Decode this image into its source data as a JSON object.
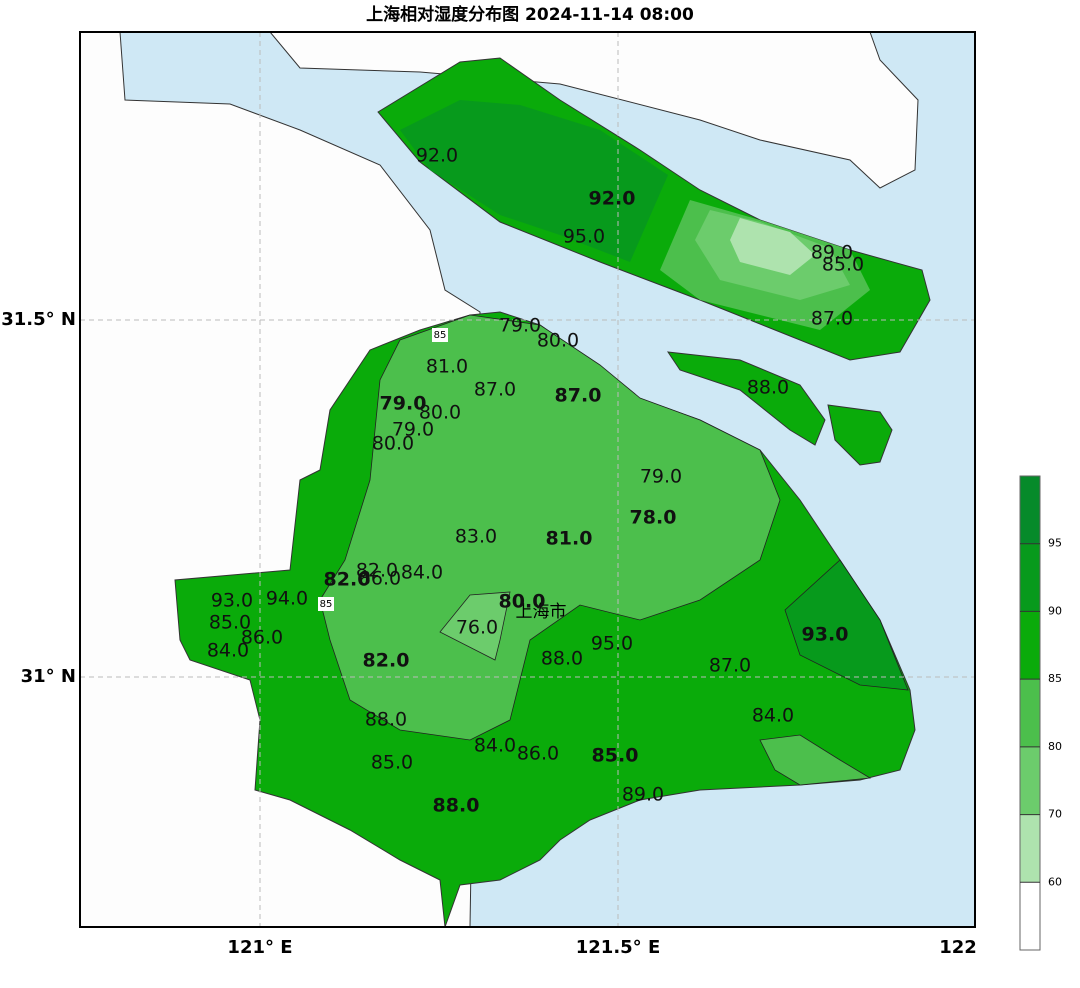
{
  "title": "上海相对湿度分布图 2024-11-14 08:00",
  "x_ticks": [
    "121° E",
    "121.5° E",
    "122"
  ],
  "y_ticks": [
    "31.5° N",
    "31° N"
  ],
  "colorbar": {
    "ticks": [
      60,
      70,
      80,
      85,
      90,
      95
    ],
    "colors": [
      "#ffffff",
      "#aee3ae",
      "#6ccc6c",
      "#4cbf4c",
      "#0aab0a",
      "#079a1c",
      "#068a2a"
    ]
  },
  "city": "上海市",
  "contour_labels": [
    "85",
    "85"
  ],
  "labels": [
    {
      "text": "92.0",
      "bold": false
    },
    {
      "text": "92.0",
      "bold": true
    },
    {
      "text": "95.0",
      "bold": false
    },
    {
      "text": "89.0",
      "bold": false
    },
    {
      "text": "85.0",
      "bold": false
    },
    {
      "text": "87.0",
      "bold": false
    },
    {
      "text": "88.0",
      "bold": false
    },
    {
      "text": "79.0",
      "bold": false
    },
    {
      "text": "80.0",
      "bold": false
    },
    {
      "text": "81.0",
      "bold": false
    },
    {
      "text": "87.0",
      "bold": false
    },
    {
      "text": "87.0",
      "bold": true
    },
    {
      "text": "79.0",
      "bold": true
    },
    {
      "text": "80.0",
      "bold": false
    },
    {
      "text": "79.0",
      "bold": false
    },
    {
      "text": "80.0",
      "bold": false
    },
    {
      "text": "79.0",
      "bold": false
    },
    {
      "text": "78.0",
      "bold": true
    },
    {
      "text": "83.0",
      "bold": false
    },
    {
      "text": "81.0",
      "bold": true
    },
    {
      "text": "82.0",
      "bold": false
    },
    {
      "text": "86.0",
      "bold": false
    },
    {
      "text": "84.0",
      "bold": false
    },
    {
      "text": "82.0",
      "bold": true
    },
    {
      "text": "93.0",
      "bold": false
    },
    {
      "text": "94.0",
      "bold": false
    },
    {
      "text": "80.0",
      "bold": true
    },
    {
      "text": "85.0",
      "bold": false
    },
    {
      "text": "86.0",
      "bold": false
    },
    {
      "text": "76.0",
      "bold": false
    },
    {
      "text": "84.0",
      "bold": false
    },
    {
      "text": "95.0",
      "bold": false
    },
    {
      "text": "93.0",
      "bold": true
    },
    {
      "text": "82.0",
      "bold": true
    },
    {
      "text": "88.0",
      "bold": false
    },
    {
      "text": "87.0",
      "bold": false
    },
    {
      "text": "84.0",
      "bold": false
    },
    {
      "text": "88.0",
      "bold": false
    },
    {
      "text": "84.0",
      "bold": false
    },
    {
      "text": "86.0",
      "bold": false
    },
    {
      "text": "85.0",
      "bold": true
    },
    {
      "text": "85.0",
      "bold": false
    },
    {
      "text": "89.0",
      "bold": false
    },
    {
      "text": "88.0",
      "bold": true
    }
  ]
}
